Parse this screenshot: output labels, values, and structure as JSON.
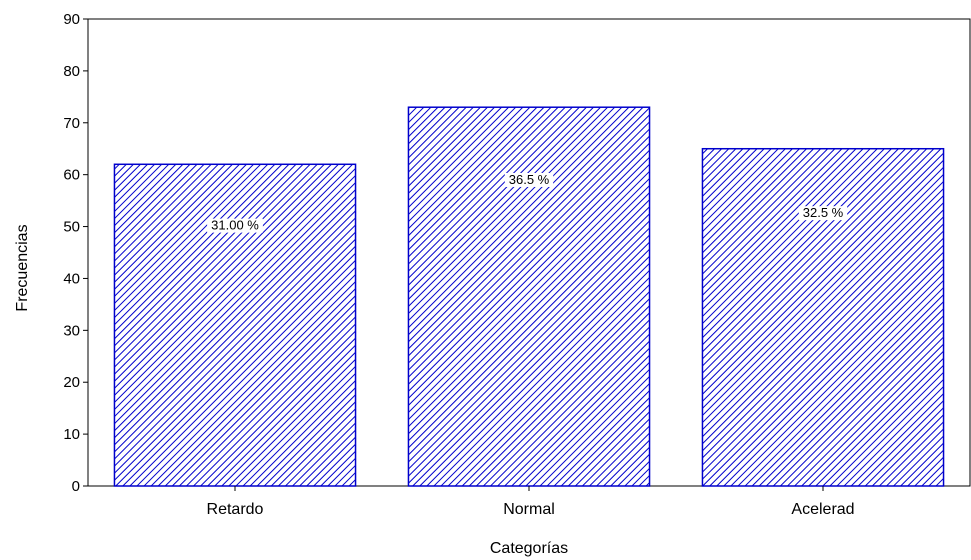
{
  "chart_data": {
    "type": "bar",
    "title": "",
    "xlabel": "Categorías",
    "ylabel": "Frecuencias",
    "categories": [
      "Retardo",
      "Normal",
      "Acelerad"
    ],
    "values": [
      62,
      73,
      65
    ],
    "data_labels": [
      "31.00 %",
      "36.5 %",
      "32.5 %"
    ],
    "ylim": [
      0,
      90
    ],
    "yticks": [
      0,
      10,
      20,
      30,
      40,
      50,
      60,
      70,
      80,
      90
    ],
    "grid": false,
    "legend": "none",
    "bar_fill": "diagonal hatch",
    "bar_color": "#0000cc"
  }
}
